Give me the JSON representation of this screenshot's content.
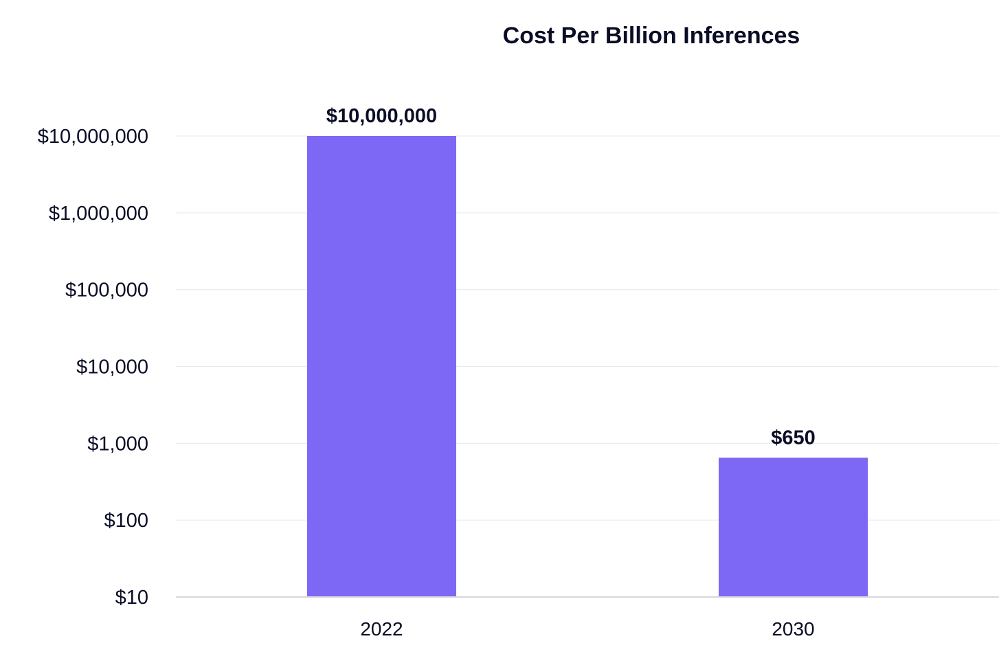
{
  "chart_data": {
    "type": "bar",
    "title": "Cost Per Billion Inferences",
    "xlabel": "",
    "ylabel": "",
    "y_scale": "log",
    "ylim": [
      10,
      10000000
    ],
    "categories": [
      "2022",
      "2030"
    ],
    "values": [
      10000000,
      650
    ],
    "data_labels": [
      "$10,000,000",
      "$650"
    ],
    "y_ticks": [
      10,
      100,
      1000,
      10000,
      100000,
      1000000,
      10000000
    ],
    "y_tick_labels": [
      "$10",
      "$100",
      "$1,000",
      "$10,000",
      "$100,000",
      "$1,000,000",
      "$10,000,000"
    ],
    "grid": true,
    "legend": "none",
    "colors": {
      "bar": "#7c68f5",
      "grid": "#e9e9ee",
      "axis": "#d6d6dc",
      "text": "#0b0d26"
    }
  }
}
